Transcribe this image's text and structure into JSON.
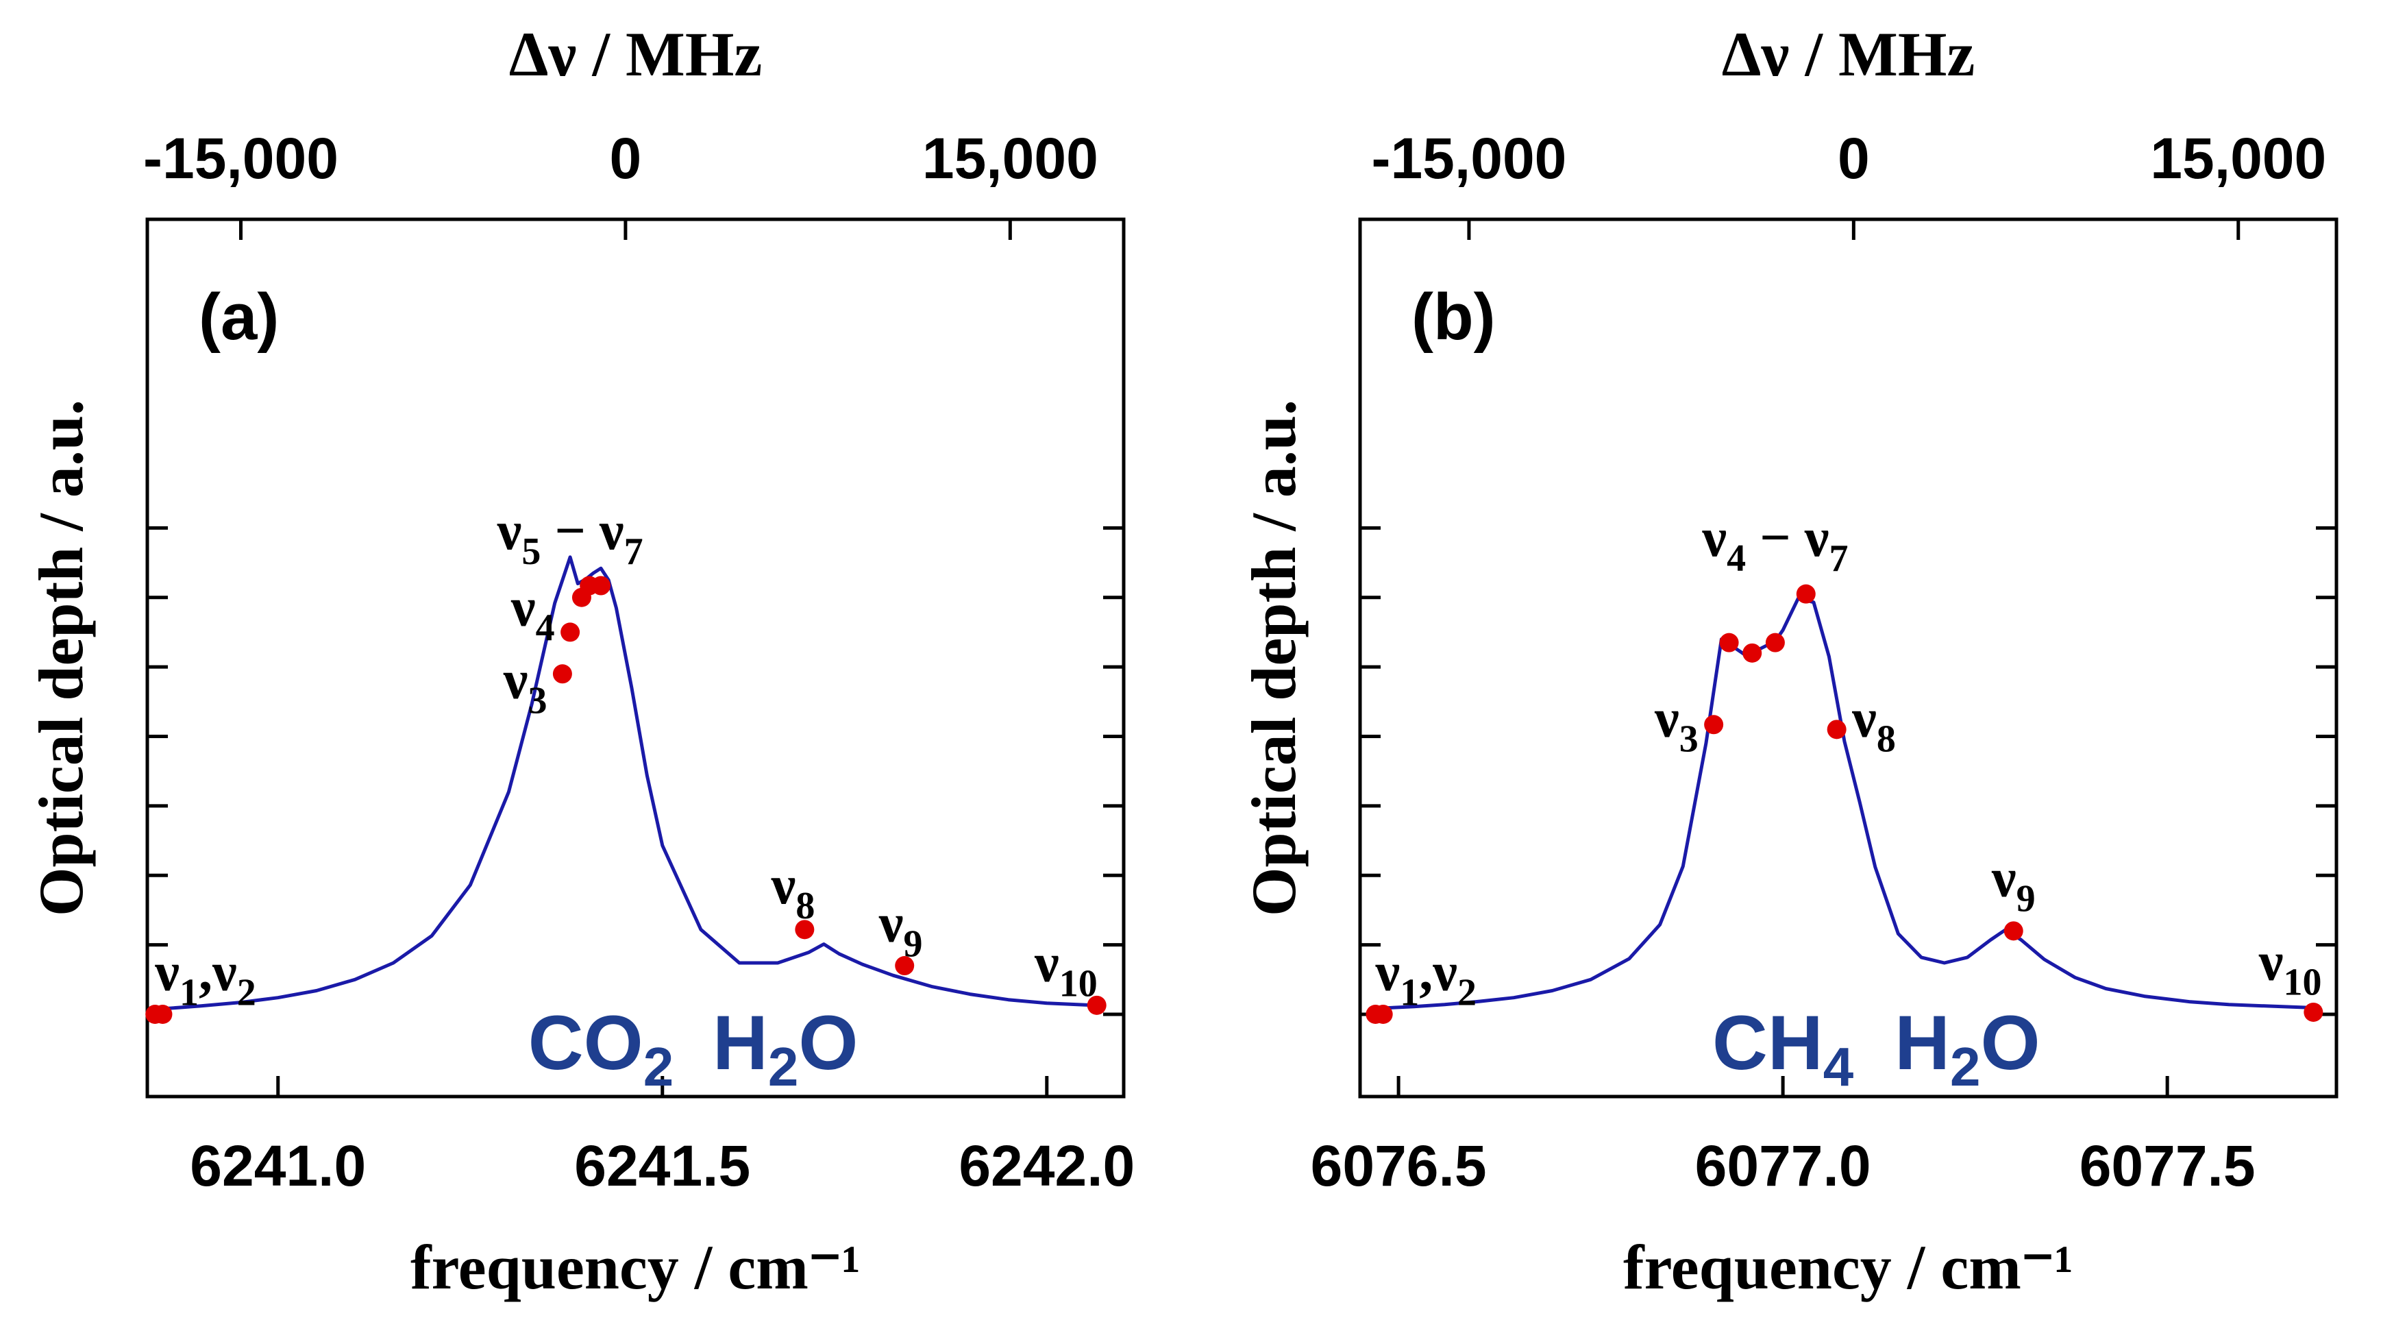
{
  "colors": {
    "line": "#1a1aa8",
    "marker": "#e00000",
    "species": "#1f3f8f",
    "axes": "#000000"
  },
  "chart_data": [
    {
      "type": "line",
      "panel_label": "(a)",
      "xlabel": "frequency / cm⁻¹",
      "ylabel": "Optical depth / a.u.",
      "x2label": "Δν / MHz",
      "xlim": [
        6240.83,
        6242.1
      ],
      "ylim": [
        0,
        1.08
      ],
      "xticks": [
        6241.0,
        6241.5,
        6242.0
      ],
      "xtick_labels": [
        "6241.0",
        "6241.5",
        "6242.0"
      ],
      "top_center": 6241.452,
      "top_ticks": [
        -15000,
        0,
        15000
      ],
      "top_tick_labels": [
        "-15,000",
        "0",
        "15,000"
      ],
      "yticks": [
        0,
        0.1,
        0.2,
        0.3,
        0.4,
        0.5,
        0.6,
        0.7
      ],
      "y_ticklabels_shown": false,
      "species_labels": [
        {
          "main": "CO",
          "sub": "2",
          "x": 6241.42
        },
        {
          "main": "H",
          "sub": "2",
          "tail": "O",
          "x": 6241.66
        }
      ],
      "peaks": [
        {
          "center": 6241.42,
          "gamma": 0.058,
          "amp": 0.55
        },
        {
          "center": 6241.71,
          "gamma": 0.07,
          "amp": 0.08
        }
      ],
      "series": [
        {
          "x": [
            6240.84,
            6240.85,
            6240.9,
            6240.95,
            6241.0,
            6241.05,
            6241.1,
            6241.15,
            6241.2,
            6241.25,
            6241.3,
            6241.33,
            6241.36,
            6241.38,
            6241.39,
            6241.4,
            6241.41,
            6241.42,
            6241.43,
            6241.44,
            6241.46,
            6241.48,
            6241.5,
            6241.55,
            6241.6,
            6241.65,
            6241.69,
            6241.71,
            6241.73,
            6241.76,
            6241.8,
            6241.85,
            6241.9,
            6241.95,
            6242.0,
            6242.06
          ],
          "y": [
            0.007,
            0.008,
            0.012,
            0.017,
            0.024,
            0.034,
            0.05,
            0.074,
            0.113,
            0.186,
            0.32,
            0.446,
            0.592,
            0.658,
            0.62,
            0.626,
            0.635,
            0.642,
            0.625,
            0.585,
            0.47,
            0.344,
            0.243,
            0.122,
            0.074,
            0.074,
            0.089,
            0.101,
            0.087,
            0.072,
            0.056,
            0.04,
            0.029,
            0.021,
            0.016,
            0.013
          ]
        }
      ],
      "markers": [
        {
          "x": 6240.84,
          "y": 0.0
        },
        {
          "x": 6240.85,
          "y": 0.0
        },
        {
          "x": 6241.37,
          "y": 0.49
        },
        {
          "x": 6241.38,
          "y": 0.55
        },
        {
          "x": 6241.395,
          "y": 0.6
        },
        {
          "x": 6241.405,
          "y": 0.617
        },
        {
          "x": 6241.42,
          "y": 0.617
        },
        {
          "x": 6241.685,
          "y": 0.122
        },
        {
          "x": 6241.815,
          "y": 0.07
        },
        {
          "x": 6242.065,
          "y": 0.013
        }
      ],
      "mode_labels": [
        {
          "base": "ν",
          "sub": "1",
          "sep": ",ν",
          "sub2": "2",
          "x": 6240.84,
          "y": 0.035,
          "anchor": "start"
        },
        {
          "base": "ν",
          "sub": "3",
          "x": 6241.35,
          "y": 0.455,
          "anchor": "end"
        },
        {
          "base": "ν",
          "sub": "4",
          "x": 6241.36,
          "y": 0.56,
          "anchor": "end"
        },
        {
          "base": "ν",
          "sub": "5",
          "sep": " − ν",
          "sub2": "7",
          "x": 6241.38,
          "y": 0.67,
          "anchor": "middle"
        },
        {
          "base": "ν",
          "sub": "8",
          "x": 6241.67,
          "y": 0.16,
          "anchor": "middle"
        },
        {
          "base": "ν",
          "sub": "9",
          "x": 6241.81,
          "y": 0.105,
          "anchor": "middle"
        },
        {
          "base": "ν",
          "sub": "10",
          "x": 6242.025,
          "y": 0.048,
          "anchor": "middle"
        }
      ]
    },
    {
      "type": "line",
      "panel_label": "(b)",
      "xlabel": "frequency / cm⁻¹",
      "ylabel": "Optical depth / a.u.",
      "x2label": "Δν / MHz",
      "xlim": [
        6076.45,
        6077.72
      ],
      "ylim": [
        0,
        1.08
      ],
      "xticks": [
        6076.5,
        6077.0,
        6077.5
      ],
      "xtick_labels": [
        "6076.5",
        "6077.0",
        "6077.5"
      ],
      "top_center": 6077.092,
      "top_ticks": [
        -15000,
        0,
        15000
      ],
      "top_tick_labels": [
        "-15,000",
        "0",
        "15,000"
      ],
      "yticks": [
        0,
        0.1,
        0.2,
        0.3,
        0.4,
        0.5,
        0.6,
        0.7
      ],
      "y_ticklabels_shown": false,
      "species_labels": [
        {
          "main": "CH",
          "sub": "4",
          "x": 6077.0
        },
        {
          "main": "H",
          "sub": "2",
          "tail": "O",
          "x": 6077.24
        }
      ],
      "peaks": [],
      "series": [
        {
          "x": [
            6076.47,
            6076.48,
            6076.52,
            6076.56,
            6076.6,
            6076.65,
            6076.7,
            6076.75,
            6076.8,
            6076.84,
            6076.87,
            6076.9,
            6076.92,
            6076.93,
            6076.95,
            6076.97,
            6076.99,
            6077.0,
            6077.02,
            6077.04,
            6077.06,
            6077.08,
            6077.1,
            6077.12,
            6077.15,
            6077.18,
            6077.21,
            6077.24,
            6077.27,
            6077.29,
            6077.31,
            6077.34,
            6077.38,
            6077.42,
            6077.47,
            6077.53,
            6077.58,
            6077.65,
            6077.7
          ],
          "y": [
            0.008,
            0.009,
            0.011,
            0.014,
            0.018,
            0.024,
            0.034,
            0.05,
            0.08,
            0.129,
            0.213,
            0.39,
            0.54,
            0.533,
            0.518,
            0.526,
            0.537,
            0.553,
            0.599,
            0.593,
            0.515,
            0.393,
            0.305,
            0.212,
            0.116,
            0.082,
            0.074,
            0.082,
            0.107,
            0.122,
            0.107,
            0.079,
            0.053,
            0.037,
            0.026,
            0.018,
            0.014,
            0.011,
            0.009
          ]
        }
      ],
      "markers": [
        {
          "x": 6076.47,
          "y": 0.0
        },
        {
          "x": 6076.48,
          "y": 0.0
        },
        {
          "x": 6076.91,
          "y": 0.417
        },
        {
          "x": 6076.93,
          "y": 0.535
        },
        {
          "x": 6076.96,
          "y": 0.52
        },
        {
          "x": 6076.99,
          "y": 0.535
        },
        {
          "x": 6077.03,
          "y": 0.605
        },
        {
          "x": 6077.07,
          "y": 0.41
        },
        {
          "x": 6077.3,
          "y": 0.12
        },
        {
          "x": 6077.69,
          "y": 0.003
        }
      ],
      "mode_labels": [
        {
          "base": "ν",
          "sub": "1",
          "sep": ",ν",
          "sub2": "2",
          "x": 6076.47,
          "y": 0.035,
          "anchor": "start"
        },
        {
          "base": "ν",
          "sub": "3",
          "x": 6076.89,
          "y": 0.4,
          "anchor": "end"
        },
        {
          "base": "ν",
          "sub": "4",
          "sep": " − ν",
          "sub2": "7",
          "x": 6076.99,
          "y": 0.66,
          "anchor": "middle"
        },
        {
          "base": "ν",
          "sub": "8",
          "x": 6077.09,
          "y": 0.4,
          "anchor": "start"
        },
        {
          "base": "ν",
          "sub": "9",
          "x": 6077.3,
          "y": 0.17,
          "anchor": "middle"
        },
        {
          "base": "ν",
          "sub": "10",
          "x": 6077.66,
          "y": 0.05,
          "anchor": "middle"
        }
      ]
    }
  ]
}
